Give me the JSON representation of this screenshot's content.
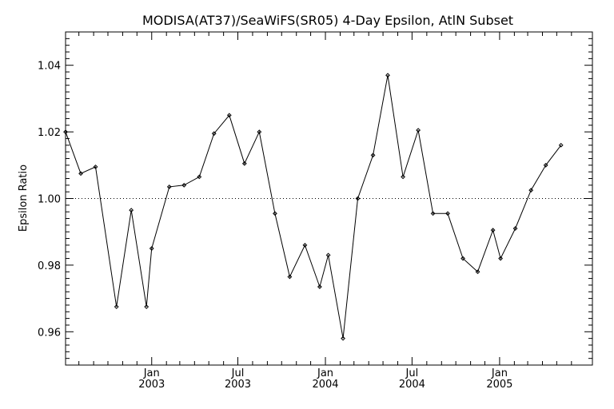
{
  "chart_data": {
    "type": "line",
    "title": "MODISA(AT37)/SeaWiFS(SR05) 4-Day Epsilon, AtlN Subset",
    "xlabel": "",
    "ylabel": "Epsilon Ratio",
    "x_start": "2002-07-04",
    "x_end": "2005-07-15",
    "ylim": [
      0.95,
      1.05
    ],
    "y_ticks": [
      "0.96",
      "0.98",
      "1.00",
      "1.02",
      "1.04"
    ],
    "x_ticks": [
      {
        "date": "2003-01-01",
        "month": "Jan",
        "year": "2003"
      },
      {
        "date": "2003-07-01",
        "month": "Jul",
        "year": "2003"
      },
      {
        "date": "2004-01-01",
        "month": "Jan",
        "year": "2004"
      },
      {
        "date": "2004-07-01",
        "month": "Jul",
        "year": "2004"
      },
      {
        "date": "2005-01-01",
        "month": "Jan",
        "year": "2005"
      }
    ],
    "reference_line": 1.0,
    "grid": false,
    "line_color": "#000000",
    "series": [
      {
        "x": [
          "2002-07-04",
          "2002-08-05",
          "2002-09-05",
          "2002-10-19",
          "2002-11-19",
          "2002-12-21",
          "2003-01-01",
          "2003-02-07",
          "2003-03-10",
          "2003-04-11",
          "2003-05-12",
          "2003-06-13",
          "2003-07-15",
          "2003-08-15",
          "2003-09-17",
          "2003-10-18",
          "2003-11-19",
          "2003-12-20",
          "2004-01-07",
          "2004-02-07",
          "2004-03-09",
          "2004-04-10",
          "2004-05-11",
          "2004-06-12",
          "2004-07-14",
          "2004-08-14",
          "2004-09-14",
          "2004-10-16",
          "2004-11-16",
          "2004-12-18",
          "2005-01-03",
          "2005-02-03",
          "2005-03-08",
          "2005-04-08",
          "2005-05-10"
        ],
        "values": [
          1.02,
          1.0075,
          1.0095,
          0.9675,
          0.9965,
          0.9675,
          0.985,
          1.0035,
          1.004,
          1.0065,
          1.0195,
          1.025,
          1.0105,
          1.02,
          0.9955,
          0.9765,
          0.986,
          0.9735,
          0.983,
          0.958,
          1.0,
          1.013,
          1.037,
          1.0065,
          1.0205,
          0.9955,
          0.9955,
          0.982,
          0.978,
          0.9905,
          0.982,
          0.991,
          1.0025,
          1.01,
          1.016
        ]
      }
    ]
  }
}
